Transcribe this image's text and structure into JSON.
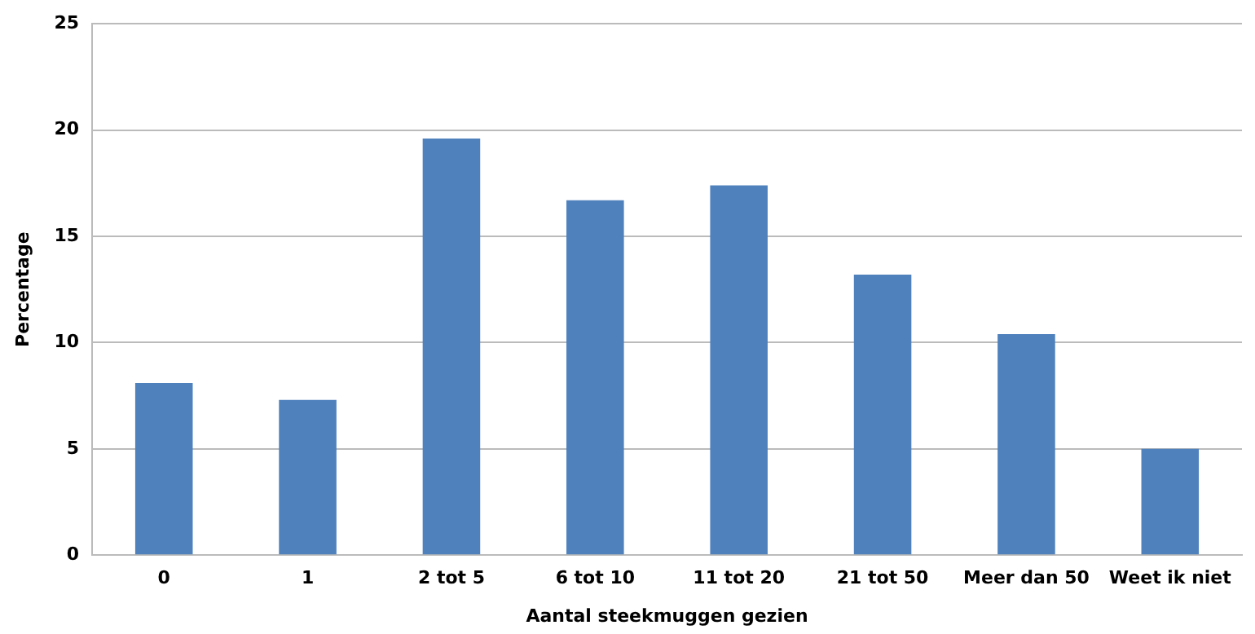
{
  "chart_data": {
    "type": "bar",
    "xlabel": "Aantal steekmuggen gezien",
    "ylabel": "Percentage",
    "categories": [
      "0",
      "1",
      "2 tot 5",
      "6 tot 10",
      "11 tot 20",
      "21 tot 50",
      "Meer dan 50",
      "Weet ik niet"
    ],
    "values": [
      8.1,
      7.3,
      19.6,
      16.7,
      17.4,
      13.2,
      10.4,
      5.0
    ],
    "color": "#4f81bd",
    "ylim": [
      0,
      25
    ],
    "yticks": [
      0,
      5,
      10,
      15,
      20,
      25
    ],
    "grid": "y",
    "legend": false
  }
}
